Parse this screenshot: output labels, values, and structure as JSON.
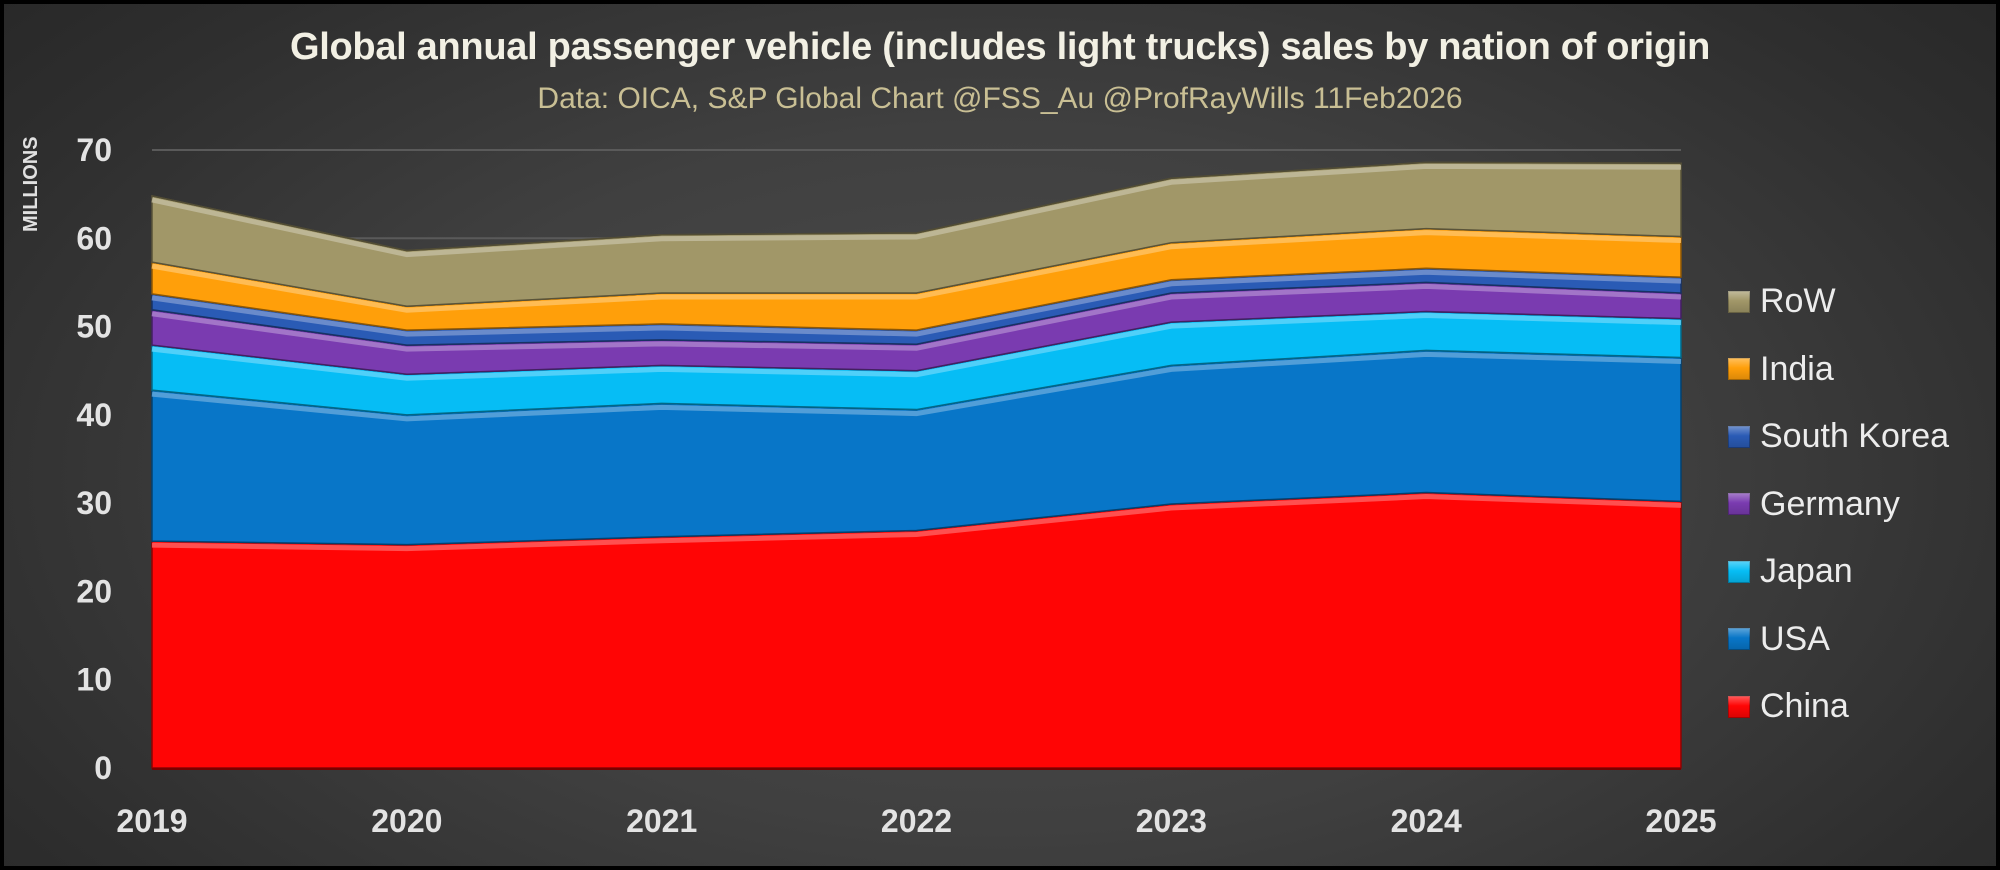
{
  "chart_data": {
    "type": "area",
    "stacked": true,
    "title": "Global annual passenger vehicle (includes light trucks) sales by nation of origin",
    "subtitle": "Data:  OICA, S&P Global  Chart @FSS_Au @ProfRayWills 11Feb2026",
    "xlabel": "",
    "ylabel": "MILLIONS",
    "ylim": [
      0,
      70
    ],
    "yticks": [
      0,
      10,
      20,
      30,
      40,
      50,
      60,
      70
    ],
    "grid": true,
    "legend_position": "right",
    "categories": [
      "2019",
      "2020",
      "2021",
      "2022",
      "2023",
      "2024",
      "2025"
    ],
    "series": [
      {
        "name": "China",
        "color": "#ff0505",
        "values": [
          25.7,
          25.3,
          26.2,
          26.9,
          29.9,
          31.2,
          30.2
        ]
      },
      {
        "name": "USA",
        "color": "#0876c8",
        "values": [
          17.1,
          14.7,
          15.1,
          13.7,
          15.7,
          16.1,
          16.3
        ]
      },
      {
        "name": "Japan",
        "color": "#06bdf5",
        "values": [
          5.1,
          4.6,
          4.3,
          4.4,
          4.9,
          4.4,
          4.4
        ]
      },
      {
        "name": "Germany",
        "color": "#7a3bb0",
        "values": [
          4.0,
          3.3,
          2.9,
          3.0,
          3.3,
          3.3,
          2.9
        ]
      },
      {
        "name": "South Korea",
        "color": "#2a5bb5",
        "values": [
          1.8,
          1.7,
          1.8,
          1.6,
          1.5,
          1.6,
          1.8
        ]
      },
      {
        "name": "India",
        "color": "#ff9f0a",
        "values": [
          3.6,
          2.7,
          3.5,
          4.2,
          4.2,
          4.5,
          4.6
        ]
      },
      {
        "name": "RoW",
        "color": "#a19768",
        "values": [
          7.5,
          6.3,
          6.6,
          6.8,
          7.3,
          7.5,
          8.3
        ]
      }
    ],
    "legend_order": [
      "RoW",
      "India",
      "South Korea",
      "Germany",
      "Japan",
      "USA",
      "China"
    ]
  },
  "legend": [
    {
      "label": "RoW",
      "color": "#a19768"
    },
    {
      "label": "India",
      "color": "#ff9f0a"
    },
    {
      "label": "South Korea",
      "color": "#2a5bb5"
    },
    {
      "label": "Germany",
      "color": "#7a3bb0"
    },
    {
      "label": "Japan",
      "color": "#06bdf5"
    },
    {
      "label": "USA",
      "color": "#0876c8"
    },
    {
      "label": "China",
      "color": "#ff0505"
    }
  ]
}
